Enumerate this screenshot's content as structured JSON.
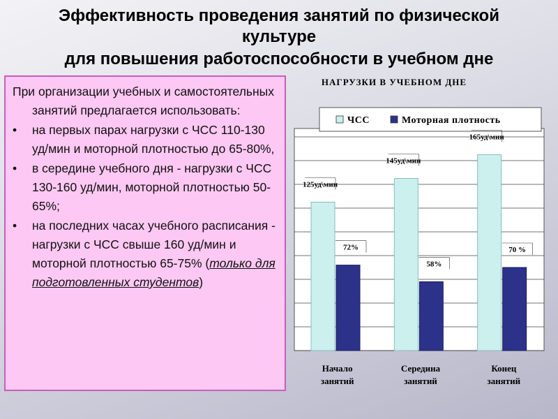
{
  "title": {
    "line1": "Эффективность проведения занятий по физической культуре",
    "line2": "для повышения работоспособности в учебном дне"
  },
  "text_panel": {
    "intro": "При организации учебных и самостоятельных занятий предлагается использовать:",
    "bullets": [
      "на первых парах нагрузки с ЧСС 110-130 уд/мин и моторной плотностью до 65-80%,",
      "в середине учебного дня - нагрузки с ЧСС 130-160 уд/мин, моторной плотностью 50-65%;",
      "на последних часах учебного расписания - нагрузки с ЧСС свыше 160 уд/мин и моторной плотностью 65-75%"
    ],
    "note_open": " (",
    "note": "только для подготовленных студентов",
    "note_close": ")"
  },
  "chart_data": {
    "type": "bar",
    "title": "НАГРУЗКИ В УЧЕБНОМ ДНЕ",
    "categories": [
      "Начало занятий",
      "Середина занятий",
      "Конец занятий"
    ],
    "series": [
      {
        "name": "ЧСС",
        "values": [
          125,
          145,
          165
        ],
        "labels": [
          "125уд\\мин",
          "145уд\\мин",
          "165уд\\мин"
        ],
        "color": "#ccf0ee"
      },
      {
        "name": "Моторная плотность",
        "values": [
          72,
          58,
          70
        ],
        "labels": [
          "72%",
          "58%",
          "70 %"
        ],
        "color": "#2c318a"
      }
    ],
    "ylim": [
      0,
      180
    ],
    "grid": true,
    "legend_position": "top"
  }
}
